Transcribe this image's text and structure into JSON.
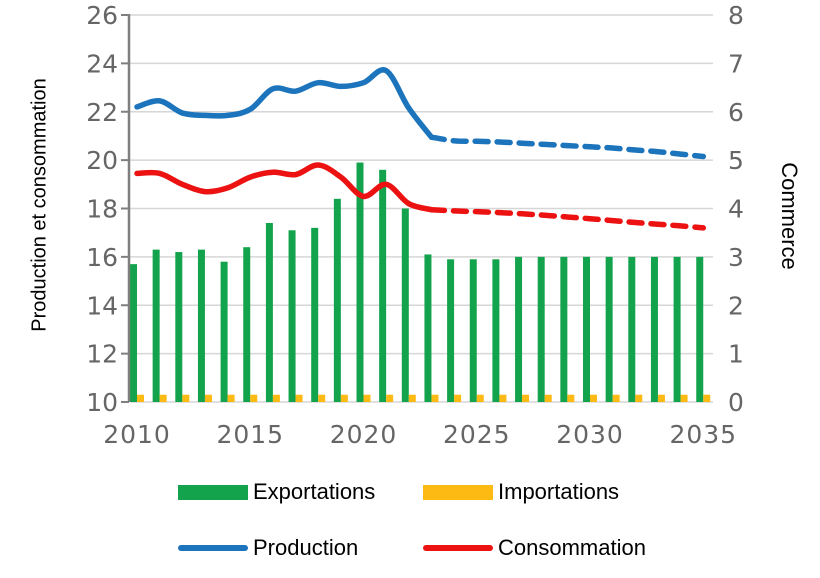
{
  "figure": {
    "background": "#FFFFFF",
    "left_axis_title": "Production et consommation",
    "right_axis_title": "Commerce",
    "legend": {
      "items": [
        {
          "label": "Exportations",
          "swatch": "bar",
          "color": "#12A34C"
        },
        {
          "label": "Importations",
          "swatch": "bar",
          "color": "#FDBA12"
        },
        {
          "label": "Production",
          "swatch": "line",
          "color": "#1B74BC"
        },
        {
          "label": "Consommation",
          "swatch": "line",
          "color": "#EC1212"
        }
      ]
    }
  },
  "chart_data": {
    "type": "combo-bar-line",
    "title": "",
    "x": [
      2010,
      2011,
      2012,
      2013,
      2014,
      2015,
      2016,
      2017,
      2018,
      2019,
      2020,
      2021,
      2022,
      2023,
      2024,
      2025,
      2026,
      2027,
      2028,
      2029,
      2030,
      2031,
      2032,
      2033,
      2034,
      2035
    ],
    "x_axis": {
      "tick_labels": [
        "2010",
        "2015",
        "2020",
        "2025",
        "2030",
        "2035"
      ]
    },
    "left_axis": {
      "label": "Production et consommation",
      "range": [
        10,
        26
      ],
      "ticks": [
        10,
        12,
        14,
        16,
        18,
        20,
        22,
        24,
        26
      ]
    },
    "right_axis": {
      "label": "Commerce",
      "range": [
        0,
        8
      ],
      "ticks": [
        0,
        1,
        2,
        3,
        4,
        5,
        6,
        7,
        8
      ]
    },
    "grid": true,
    "legend_position": "bottom",
    "projection_note": "lines are solid through 2023 and dashed (projection) from 2023 to 2035",
    "series": [
      {
        "name": "Exportations",
        "type": "bar",
        "axis": "right",
        "color": "#12A34C",
        "values": [
          2.85,
          3.15,
          3.1,
          3.15,
          2.9,
          3.2,
          3.7,
          3.55,
          3.6,
          4.2,
          4.95,
          4.8,
          4.0,
          3.05,
          2.95,
          2.95,
          2.95,
          3.0,
          3.0,
          3.0,
          3.0,
          3.0,
          3.0,
          3.0,
          3.0,
          3.0
        ]
      },
      {
        "name": "Importations",
        "type": "bar",
        "axis": "right",
        "color": "#FDBA12",
        "values": [
          0.15,
          0.15,
          0.15,
          0.15,
          0.15,
          0.15,
          0.15,
          0.15,
          0.15,
          0.15,
          0.15,
          0.15,
          0.15,
          0.15,
          0.15,
          0.15,
          0.15,
          0.15,
          0.15,
          0.15,
          0.15,
          0.15,
          0.15,
          0.15,
          0.15,
          0.15
        ]
      },
      {
        "name": "Production",
        "type": "line",
        "axis": "left",
        "color": "#1B74BC",
        "dashed_from_x": 2023,
        "values": [
          22.2,
          22.45,
          21.95,
          21.85,
          21.85,
          22.1,
          22.95,
          22.85,
          23.2,
          23.05,
          23.2,
          23.7,
          22.15,
          20.95,
          20.8,
          20.78,
          20.75,
          20.7,
          20.65,
          20.6,
          20.55,
          20.5,
          20.42,
          20.35,
          20.25,
          20.15
        ]
      },
      {
        "name": "Consommation",
        "type": "line",
        "axis": "left",
        "color": "#EC1212",
        "dashed_from_x": 2023,
        "values": [
          19.45,
          19.45,
          19.0,
          18.7,
          18.85,
          19.3,
          19.5,
          19.4,
          19.8,
          19.3,
          18.5,
          19.0,
          18.2,
          17.95,
          17.9,
          17.87,
          17.83,
          17.78,
          17.72,
          17.65,
          17.58,
          17.5,
          17.42,
          17.35,
          17.28,
          17.2
        ]
      }
    ]
  },
  "colors": {
    "gridline": "#D6D6D6",
    "axis_line": "#7F7F7F",
    "tick_text": "#666666",
    "label_text": "#000000"
  }
}
